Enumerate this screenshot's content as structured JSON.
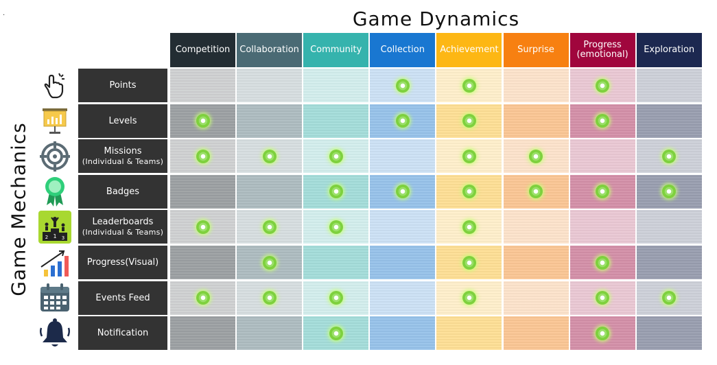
{
  "title": "Game Dynamics",
  "side_title": "Game Mechanics",
  "columns": [
    {
      "label": "Competition",
      "color": "#232d33"
    },
    {
      "label": "Collaboration",
      "color": "#4a6a74"
    },
    {
      "label": "Community",
      "color": "#35b3ad"
    },
    {
      "label": "Collection",
      "color": "#1977d1"
    },
    {
      "label": "Achievement",
      "color": "#fdb714"
    },
    {
      "label": "Surprise",
      "color": "#f78011"
    },
    {
      "label": "Progress (emotional)",
      "color": "#a0063d"
    },
    {
      "label": "Exploration",
      "color": "#1c2850"
    }
  ],
  "rows": [
    {
      "label": "Points",
      "sub": "",
      "icon": "pointer-hand-icon",
      "marks": [
        0,
        0,
        0,
        1,
        1,
        0,
        1,
        0
      ]
    },
    {
      "label": "Levels",
      "sub": "",
      "icon": "presentation-chart-icon",
      "marks": [
        1,
        0,
        0,
        1,
        1,
        0,
        1,
        0
      ]
    },
    {
      "label": "Missions",
      "sub": "(Individual & Teams)",
      "icon": "target-icon",
      "marks": [
        1,
        1,
        1,
        0,
        1,
        1,
        0,
        1
      ]
    },
    {
      "label": "Badges",
      "sub": "",
      "icon": "ribbon-badge-icon",
      "marks": [
        0,
        0,
        1,
        1,
        1,
        1,
        1,
        1
      ]
    },
    {
      "label": "Leaderboards",
      "sub": "(Individual & Teams)",
      "icon": "podium-icon",
      "marks": [
        1,
        1,
        1,
        0,
        1,
        0,
        0,
        0
      ]
    },
    {
      "label": "Progress(Visual)",
      "sub": "",
      "icon": "growth-chart-icon",
      "marks": [
        0,
        1,
        0,
        0,
        1,
        0,
        1,
        0
      ]
    },
    {
      "label": "Events Feed",
      "sub": "",
      "icon": "calendar-icon",
      "marks": [
        1,
        1,
        1,
        0,
        1,
        0,
        1,
        1
      ]
    },
    {
      "label": "Notification",
      "sub": "",
      "icon": "bell-icon",
      "marks": [
        0,
        0,
        1,
        0,
        0,
        0,
        1,
        0
      ]
    }
  ]
}
